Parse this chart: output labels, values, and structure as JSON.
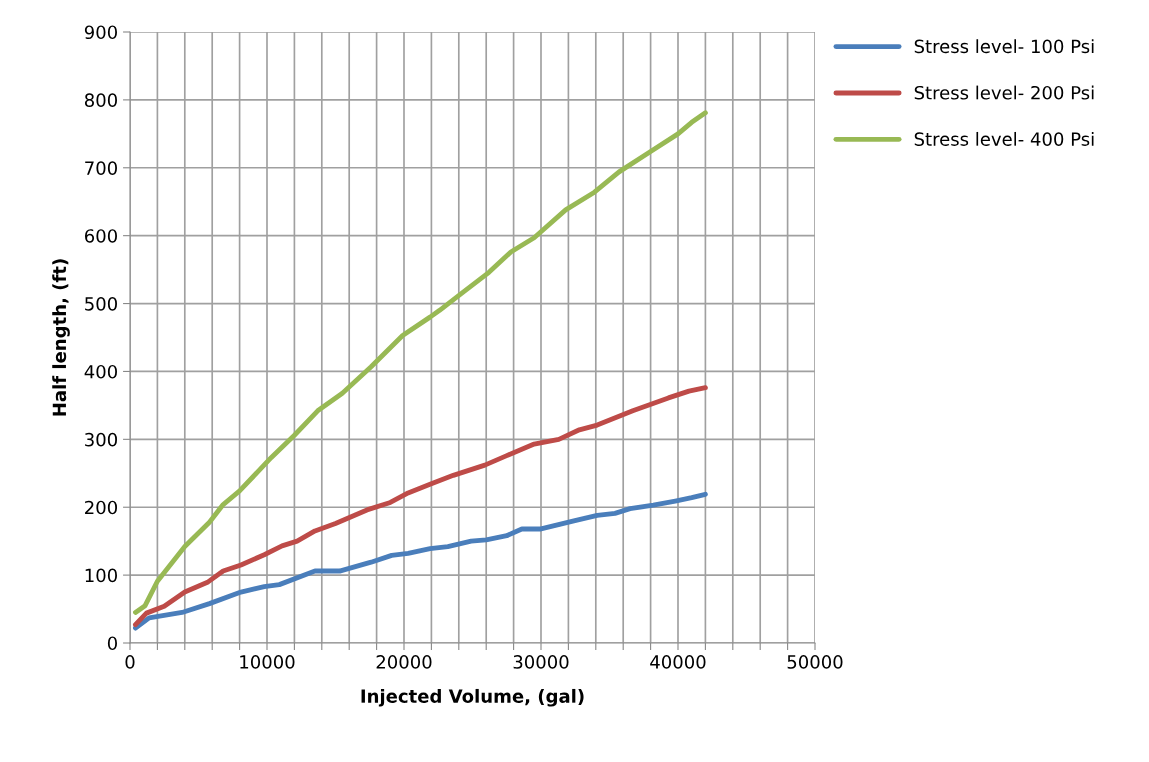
{
  "chart_data": {
    "type": "line",
    "xlabel": "Injected Volume, (gal)",
    "ylabel": "Half length, (ft)",
    "xlim": [
      0,
      50000
    ],
    "ylim": [
      0,
      900
    ],
    "xticks": [
      0,
      {
        "value": 2000,
        "label": null
      },
      {
        "value": 4000,
        "label": null
      },
      {
        "value": 6000,
        "label": null
      },
      {
        "value": 8000,
        "label": null
      },
      10000,
      {
        "value": 12000,
        "label": null
      },
      {
        "value": 14000,
        "label": null
      },
      {
        "value": 16000,
        "label": null
      },
      {
        "value": 18000,
        "label": null
      },
      20000,
      {
        "value": 22000,
        "label": null
      },
      {
        "value": 24000,
        "label": null
      },
      {
        "value": 26000,
        "label": null
      },
      {
        "value": 28000,
        "label": null
      },
      30000,
      {
        "value": 32000,
        "label": null
      },
      {
        "value": 34000,
        "label": null
      },
      {
        "value": 36000,
        "label": null
      },
      {
        "value": 38000,
        "label": null
      },
      40000,
      {
        "value": 42000,
        "label": null
      },
      {
        "value": 44000,
        "label": null
      },
      {
        "value": 46000,
        "label": null
      },
      {
        "value": 48000,
        "label": null
      },
      50000
    ],
    "yticks": [
      0,
      100,
      200,
      300,
      400,
      500,
      600,
      700,
      800,
      900
    ],
    "grid": true,
    "legend": "right",
    "marker": "none",
    "line_style": "solid",
    "series": [
      {
        "name": "Stress level- 100 Psi",
        "color": "#4a7ebb",
        "x": [
          400,
          1400,
          3800,
          5800,
          8100,
          9800,
          10900,
          13500,
          15300,
          17600,
          19100,
          20300,
          21900,
          23200,
          24900,
          26000,
          27500,
          28600,
          30000,
          32400,
          34100,
          35400,
          36500,
          38200,
          39800,
          41000,
          42000
        ],
        "values": [
          22,
          37,
          45,
          58,
          75,
          83,
          86,
          106,
          106,
          119,
          129,
          132,
          139,
          142,
          150,
          152,
          158,
          168,
          168,
          180,
          188,
          191,
          198,
          203,
          209,
          214,
          219
        ]
      },
      {
        "name": "Stress level- 200 Psi",
        "color": "#be4b48",
        "x": [
          400,
          1200,
          2500,
          4000,
          5700,
          6800,
          8100,
          9800,
          11100,
          12200,
          13500,
          15000,
          17300,
          19000,
          20300,
          21900,
          23600,
          25900,
          27500,
          29500,
          31300,
          32800,
          34100,
          36700,
          39300,
          40800,
          42000
        ],
        "values": [
          27,
          44,
          54,
          75,
          90,
          106,
          115,
          130,
          143,
          150,
          165,
          176,
          196,
          207,
          221,
          234,
          247,
          262,
          276,
          293,
          300,
          314,
          321,
          342,
          361,
          371,
          376
        ]
      },
      {
        "name": "Stress level- 400 Psi",
        "color": "#98b954",
        "x": [
          400,
          1100,
          2000,
          4000,
          5800,
          6800,
          8000,
          10300,
          12000,
          13700,
          15500,
          17600,
          19900,
          21900,
          22600,
          24200,
          26200,
          27800,
          29500,
          31800,
          33900,
          35700,
          38000,
          40000,
          41000,
          42000
        ],
        "values": [
          45,
          55,
          91,
          142,
          178,
          204,
          224,
          273,
          306,
          342,
          368,
          407,
          453,
          480,
          490,
          515,
          546,
          576,
          597,
          638,
          664,
          694,
          724,
          750,
          767,
          781
        ]
      }
    ]
  }
}
